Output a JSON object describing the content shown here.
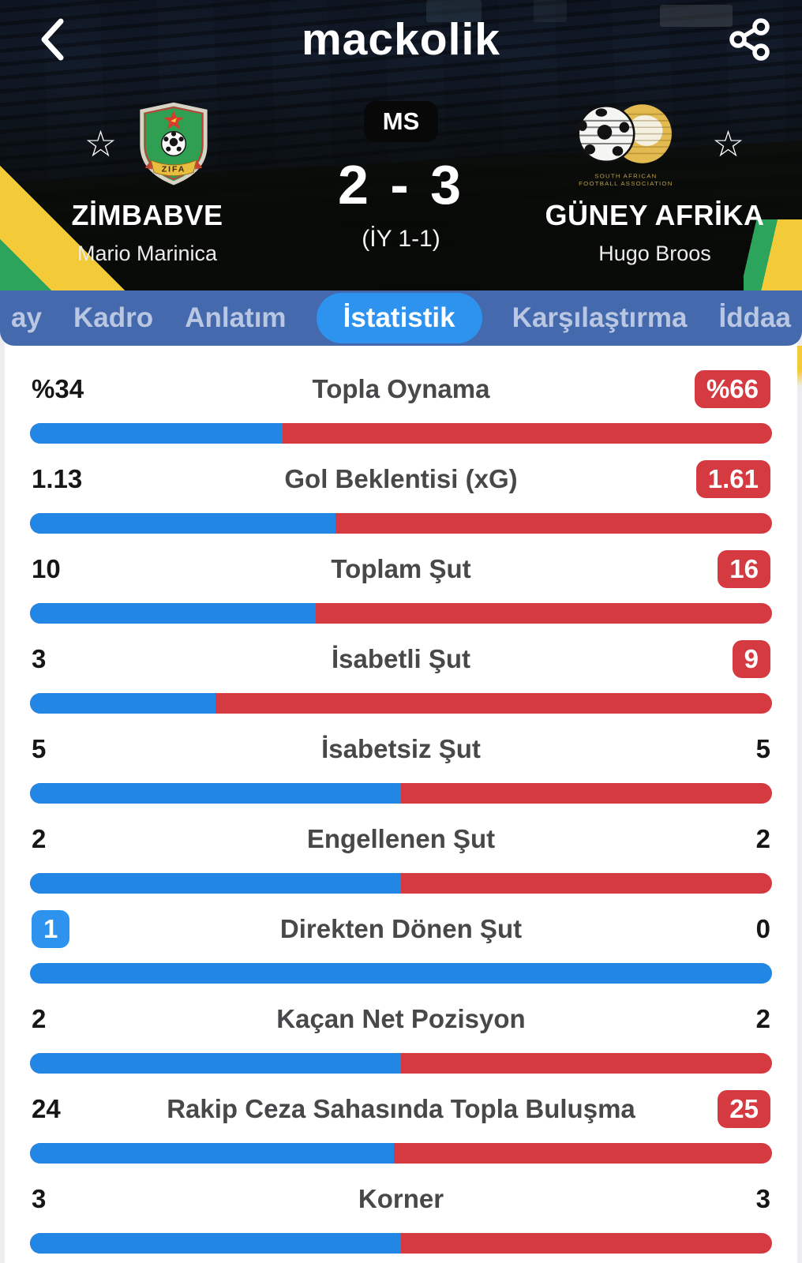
{
  "header": {
    "logo": "mackolik",
    "back_icon": "chevron-left",
    "share_icon": "share"
  },
  "match": {
    "status": "MS",
    "score": "2 - 3",
    "halftime": "(İY 1-1)",
    "home": {
      "name": "ZİMBABVE",
      "manager": "Mario Marinica",
      "crest_text": "ZIFA"
    },
    "away": {
      "name": "GÜNEY AFRİKA",
      "manager": "Hugo Broos",
      "logo_caption_line1": "SOUTH AFRICAN",
      "logo_caption_line2": "FOOTBALL ASSOCIATION"
    }
  },
  "tabs": [
    {
      "label": "ay",
      "active": false
    },
    {
      "label": "Kadro",
      "active": false
    },
    {
      "label": "Anlatım",
      "active": false
    },
    {
      "label": "İstatistik",
      "active": true
    },
    {
      "label": "Karşılaştırma",
      "active": false
    },
    {
      "label": "İddaa",
      "active": false
    }
  ],
  "colors": {
    "tabbar_blue": "#4469ad",
    "active_pill_blue": "#2e93ee",
    "bar_blue": "#2287e4",
    "bar_red": "#d53a40",
    "badge_red": "#d53a40",
    "badge_blue": "#2e93ee",
    "flag_green": "#2ca45b",
    "flag_yellow": "#f3ca37"
  },
  "stats": {
    "rows": [
      {
        "label": "Topla Oynama",
        "home": "%34",
        "away": "%66",
        "home_pct": 34,
        "leader": "away"
      },
      {
        "label": "Gol Beklentisi (xG)",
        "home": "1.13",
        "away": "1.61",
        "home_pct": 41.2,
        "leader": "away"
      },
      {
        "label": "Toplam Şut",
        "home": "10",
        "away": "16",
        "home_pct": 38.5,
        "leader": "away"
      },
      {
        "label": "İsabetli Şut",
        "home": "3",
        "away": "9",
        "home_pct": 25,
        "leader": "away"
      },
      {
        "label": "İsabetsiz Şut",
        "home": "5",
        "away": "5",
        "home_pct": 50,
        "leader": "none"
      },
      {
        "label": "Engellenen Şut",
        "home": "2",
        "away": "2",
        "home_pct": 50,
        "leader": "none"
      },
      {
        "label": "Direkten Dönen Şut",
        "home": "1",
        "away": "0",
        "home_pct": 100,
        "leader": "home"
      },
      {
        "label": "Kaçan Net Pozisyon",
        "home": "2",
        "away": "2",
        "home_pct": 50,
        "leader": "none"
      },
      {
        "label": "Rakip Ceza Sahasında Topla Buluşma",
        "home": "24",
        "away": "25",
        "home_pct": 49,
        "leader": "away"
      },
      {
        "label": "Korner",
        "home": "3",
        "away": "3",
        "home_pct": 50,
        "leader": "none"
      }
    ]
  }
}
